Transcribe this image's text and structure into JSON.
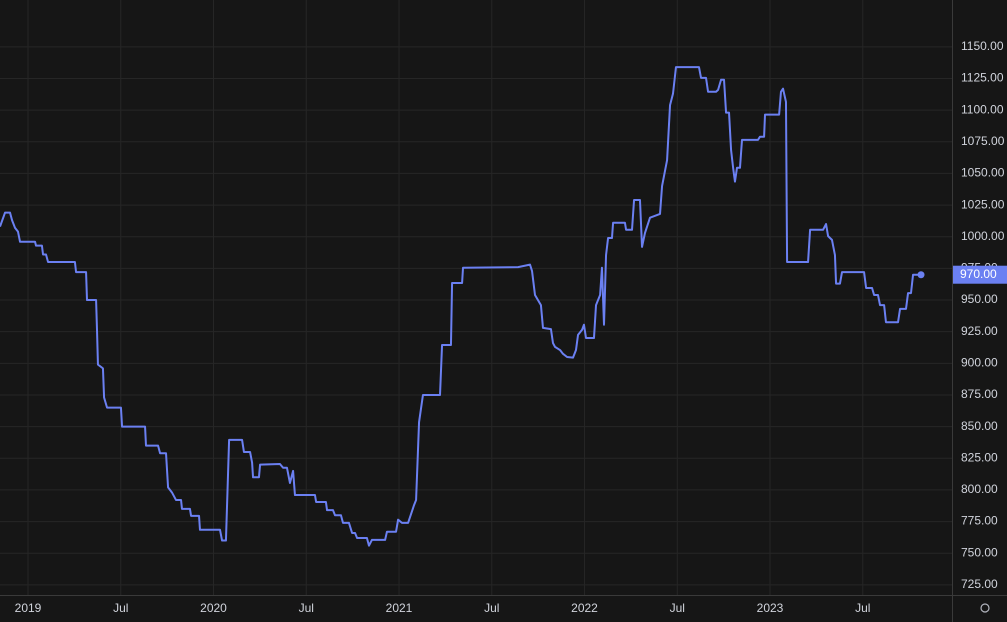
{
  "chart_data": {
    "type": "line",
    "last_price_label": "970.00",
    "xlim": [
      2018.849,
      2023.981
    ],
    "ylim": [
      717,
      1187
    ],
    "grid": true,
    "xticks": [
      2019,
      {
        "value": 2019.5,
        "label": "Jul"
      },
      2020,
      {
        "value": 2020.5,
        "label": "Jul"
      },
      2021,
      {
        "value": 2021.5,
        "label": "Jul"
      },
      2022,
      {
        "value": 2022.5,
        "label": "Jul"
      },
      2023,
      {
        "value": 2023.5,
        "label": "Jul"
      }
    ],
    "yticks": [
      {
        "value": 725,
        "label": "725.00"
      },
      {
        "value": 750,
        "label": "750.00"
      },
      {
        "value": 775,
        "label": "775.00"
      },
      {
        "value": 800,
        "label": "800.00"
      },
      {
        "value": 825,
        "label": "825.00"
      },
      {
        "value": 850,
        "label": "850.00"
      },
      {
        "value": 875,
        "label": "875.00"
      },
      {
        "value": 900,
        "label": "900.00"
      },
      {
        "value": 925,
        "label": "925.00"
      },
      {
        "value": 950,
        "label": "950.00"
      },
      {
        "value": 975,
        "label": "975.00"
      },
      {
        "value": 1000,
        "label": "1000.00"
      },
      {
        "value": 1025,
        "label": "1025.00"
      },
      {
        "value": 1050,
        "label": "1050.00"
      },
      {
        "value": 1075,
        "label": "1075.00"
      },
      {
        "value": 1100,
        "label": "1100.00"
      },
      {
        "value": 1125,
        "label": "1125.00"
      },
      {
        "value": 1150,
        "label": "1150.00"
      }
    ],
    "x": [
      2018.849,
      2018.876,
      2018.903,
      2018.914,
      2018.93,
      2018.946,
      2018.957,
      2019.038,
      2019.043,
      2019.075,
      2019.081,
      2019.097,
      2019.108,
      2019.253,
      2019.259,
      2019.313,
      2019.318,
      2019.367,
      2019.372,
      2019.377,
      2019.404,
      2019.41,
      2019.426,
      2019.501,
      2019.507,
      2019.631,
      2019.636,
      2019.701,
      2019.712,
      2019.744,
      2019.755,
      2019.776,
      2019.798,
      2019.825,
      2019.83,
      2019.873,
      2019.879,
      2019.922,
      2019.927,
      2020.035,
      2020.046,
      2020.067,
      2020.084,
      2020.154,
      2020.164,
      2020.197,
      2020.208,
      2020.213,
      2020.245,
      2020.251,
      2020.358,
      2020.375,
      2020.396,
      2020.412,
      2020.429,
      2020.439,
      2020.547,
      2020.553,
      2020.606,
      2020.612,
      2020.644,
      2020.655,
      2020.687,
      2020.698,
      2020.73,
      2020.747,
      2020.763,
      2020.774,
      2020.827,
      2020.838,
      2020.854,
      2020.925,
      2020.935,
      2020.984,
      2020.995,
      2021.016,
      2021.049,
      2021.081,
      2021.092,
      2021.108,
      2021.129,
      2021.221,
      2021.232,
      2021.28,
      2021.286,
      2021.34,
      2021.345,
      2021.642,
      2021.706,
      2021.717,
      2021.733,
      2021.765,
      2021.776,
      2021.819,
      2021.83,
      2021.841,
      2021.868,
      2021.884,
      2021.906,
      2021.938,
      2021.954,
      2021.965,
      2021.987,
      2021.997,
      2022.008,
      2022.051,
      2022.062,
      2022.084,
      2022.094,
      2022.105,
      2022.116,
      2022.127,
      2022.148,
      2022.154,
      2022.218,
      2022.224,
      2022.256,
      2022.267,
      2022.299,
      2022.31,
      2022.326,
      2022.353,
      2022.407,
      2022.418,
      2022.445,
      2022.461,
      2022.477,
      2022.493,
      2022.617,
      2022.628,
      2022.655,
      2022.666,
      2022.709,
      2022.72,
      2022.736,
      2022.752,
      2022.763,
      2022.779,
      2022.79,
      2022.801,
      2022.811,
      2022.822,
      2022.838,
      2022.849,
      2022.935,
      2022.946,
      2022.968,
      2022.973,
      2023.049,
      2023.059,
      2023.07,
      2023.086,
      2023.092,
      2023.205,
      2023.216,
      2023.286,
      2023.302,
      2023.313,
      2023.334,
      2023.35,
      2023.356,
      2023.377,
      2023.388,
      2023.507,
      2023.518,
      2023.55,
      2023.561,
      2023.582,
      2023.593,
      2023.615,
      2023.625,
      2023.69,
      2023.701,
      2023.733,
      2023.744,
      2023.76,
      2023.771,
      2023.814
    ],
    "series": [
      {
        "color": "#6b80f2",
        "values": [
          1008,
          1019,
          1019,
          1013,
          1007,
          1004,
          996,
          996,
          993,
          993,
          986,
          986,
          980,
          980,
          972,
          972,
          950,
          950,
          926,
          899,
          896,
          873,
          865,
          865,
          850,
          850,
          835,
          835,
          829,
          829,
          802,
          798,
          792,
          792,
          785,
          785,
          779.5,
          779.5,
          768.5,
          768.5,
          760,
          760,
          839.5,
          839.5,
          830,
          830,
          821.5,
          810,
          810,
          820,
          820.5,
          817.5,
          817.5,
          805.5,
          815,
          796,
          796,
          790.5,
          790.5,
          784,
          784,
          780,
          780,
          774,
          774,
          766,
          766,
          762,
          762,
          756,
          760.5,
          760.5,
          767,
          767,
          776.5,
          774,
          774,
          788,
          792,
          853.5,
          875,
          875,
          914.5,
          914.5,
          963.5,
          963.5,
          975.5,
          976,
          978,
          973,
          954,
          946,
          928,
          927,
          916,
          913,
          910.5,
          907.5,
          905,
          904.5,
          910.5,
          922.5,
          926.5,
          930.5,
          920,
          920,
          946,
          954,
          975.5,
          930.5,
          985.5,
          999,
          999,
          1011,
          1011,
          1005.5,
          1005.5,
          1029,
          1029,
          992,
          1003,
          1015,
          1018,
          1040,
          1060.5,
          1104,
          1113,
          1134,
          1134,
          1125.5,
          1125.5,
          1114.5,
          1114.5,
          1116,
          1124,
          1124,
          1098,
          1098,
          1068.5,
          1054.5,
          1043.5,
          1054.5,
          1054.5,
          1076.5,
          1076.5,
          1079,
          1079,
          1096.5,
          1096.5,
          1114.5,
          1117,
          1106.5,
          980,
          980,
          1005.5,
          1005.5,
          1010,
          1000.5,
          997.5,
          985.5,
          963,
          963,
          972,
          972,
          959.5,
          959.5,
          954,
          954,
          946,
          946,
          932.5,
          932.5,
          943,
          943,
          955.5,
          955.5,
          970,
          970
        ]
      }
    ]
  }
}
